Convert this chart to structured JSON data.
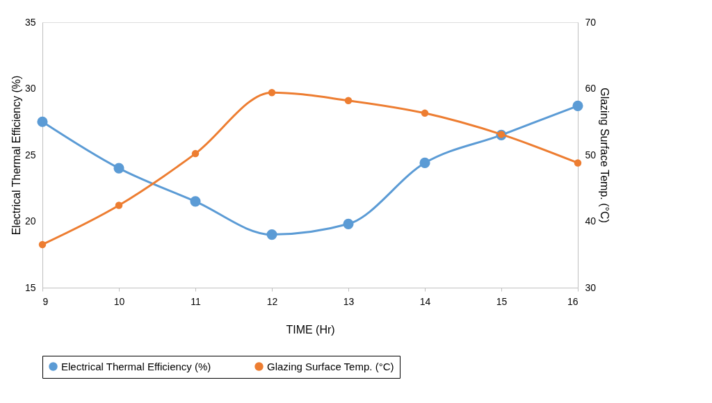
{
  "chart_data": {
    "type": "line",
    "xlabel": "TIME (Hr)",
    "ylabel": "Electrical Thermal Efficiency (%)",
    "y2label": "Glazing Surface Temp. (°C)",
    "x": [
      9,
      10,
      11,
      12,
      13,
      14,
      15,
      16
    ],
    "xlim": [
      9,
      16
    ],
    "xticks": [
      9,
      10,
      11,
      12,
      13,
      14,
      15,
      16
    ],
    "ylim": [
      15,
      35
    ],
    "yticks": [
      15,
      20,
      25,
      30,
      35
    ],
    "y2lim": [
      30,
      70
    ],
    "y2ticks": [
      30,
      40,
      50,
      60,
      70
    ],
    "series": [
      {
        "name": "Electrical Thermal Efficiency (%)",
        "color": "#5b9bd5",
        "values": [
          27.5,
          24.0,
          21.5,
          19.0,
          19.8,
          24.4,
          26.5,
          28.7
        ]
      },
      {
        "name": "Glazing Surface Temp. (°C)",
        "color": "#ed7d31",
        "axis": "y2",
        "values": [
          36.5,
          42.4,
          50.2,
          59.4,
          58.2,
          56.3,
          53.1,
          48.8
        ]
      }
    ],
    "legend": "bottom",
    "marker": "circle",
    "line_style": "solid"
  }
}
